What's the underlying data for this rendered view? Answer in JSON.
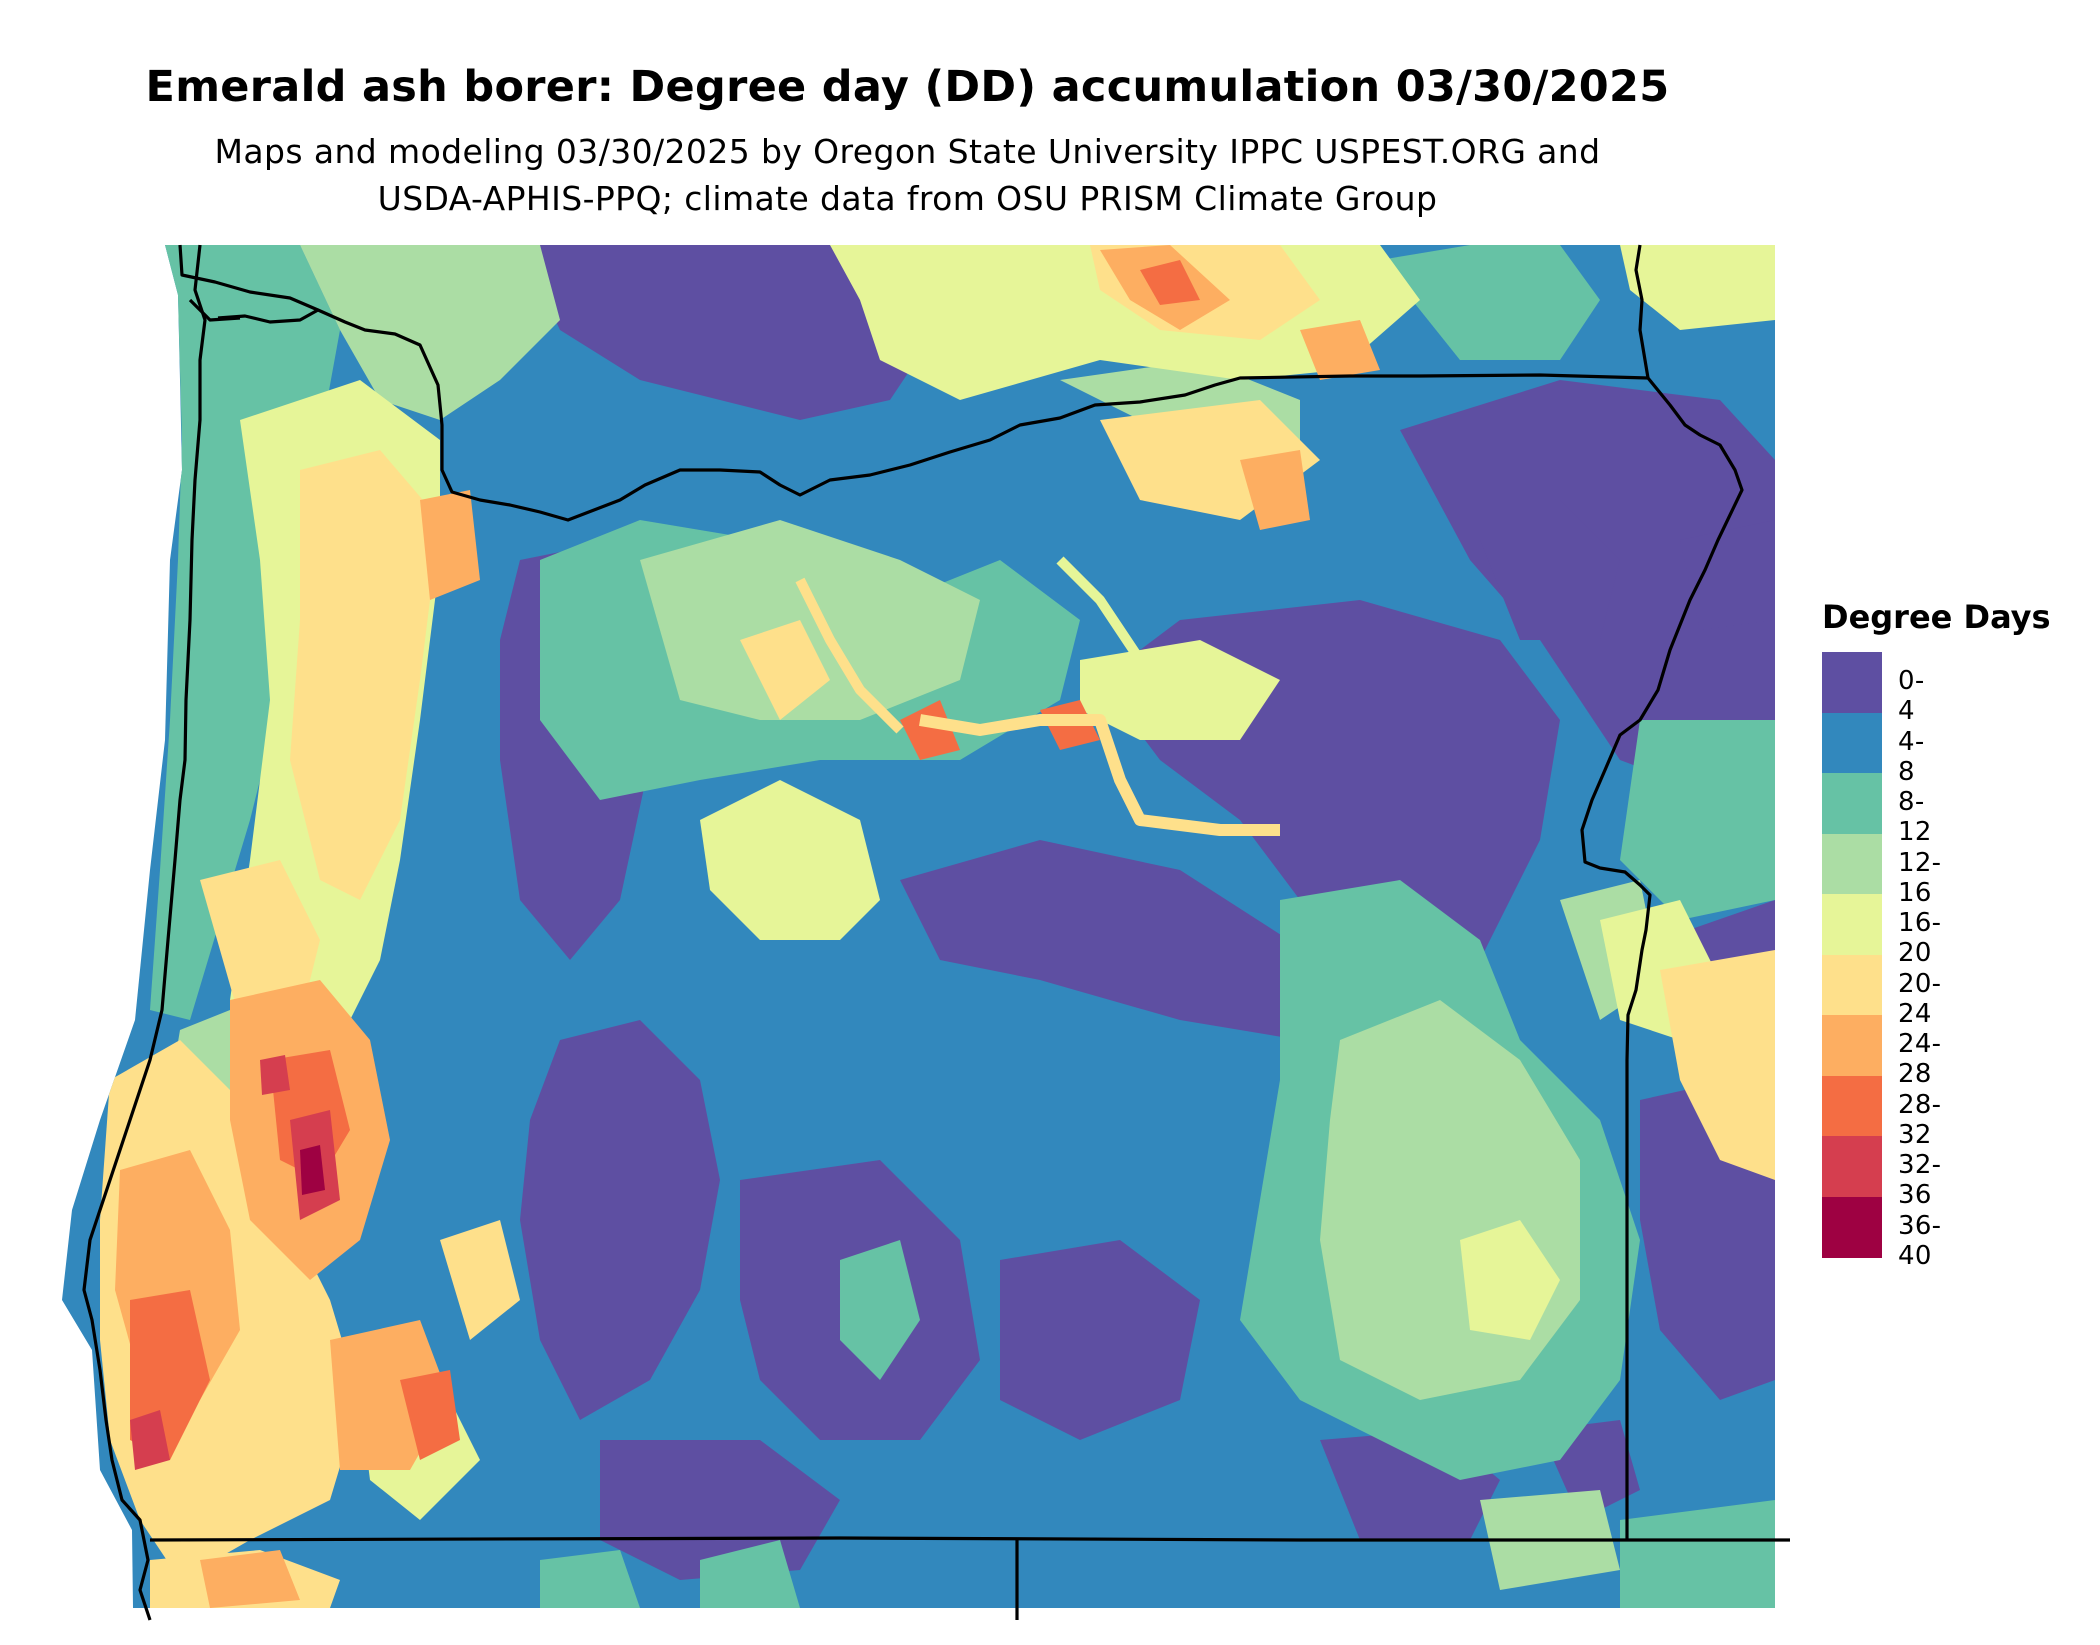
{
  "title": "Emerald ash borer: Degree day (DD) accumulation 03/30/2025",
  "subtitle_line1": "Maps and modeling 03/30/2025 by Oregon State University IPPC USPEST.ORG and",
  "subtitle_line2": "USDA-APHIS-PPQ; climate data from OSU PRISM Climate Group",
  "legend": {
    "title": "Degree Days",
    "items": [
      {
        "label": "0-4",
        "color": "#5e4fa2"
      },
      {
        "label": "4-8",
        "color": "#3288bd"
      },
      {
        "label": "8-12",
        "color": "#66c2a5"
      },
      {
        "label": "12-16",
        "color": "#abdda4"
      },
      {
        "label": "16-20",
        "color": "#e6f598"
      },
      {
        "label": "20-24",
        "color": "#fee08b"
      },
      {
        "label": "24-28",
        "color": "#fdae61"
      },
      {
        "label": "28-32",
        "color": "#f46d43"
      },
      {
        "label": "32-36",
        "color": "#d53e4f"
      },
      {
        "label": "36-40",
        "color": "#9e0142"
      }
    ]
  }
}
